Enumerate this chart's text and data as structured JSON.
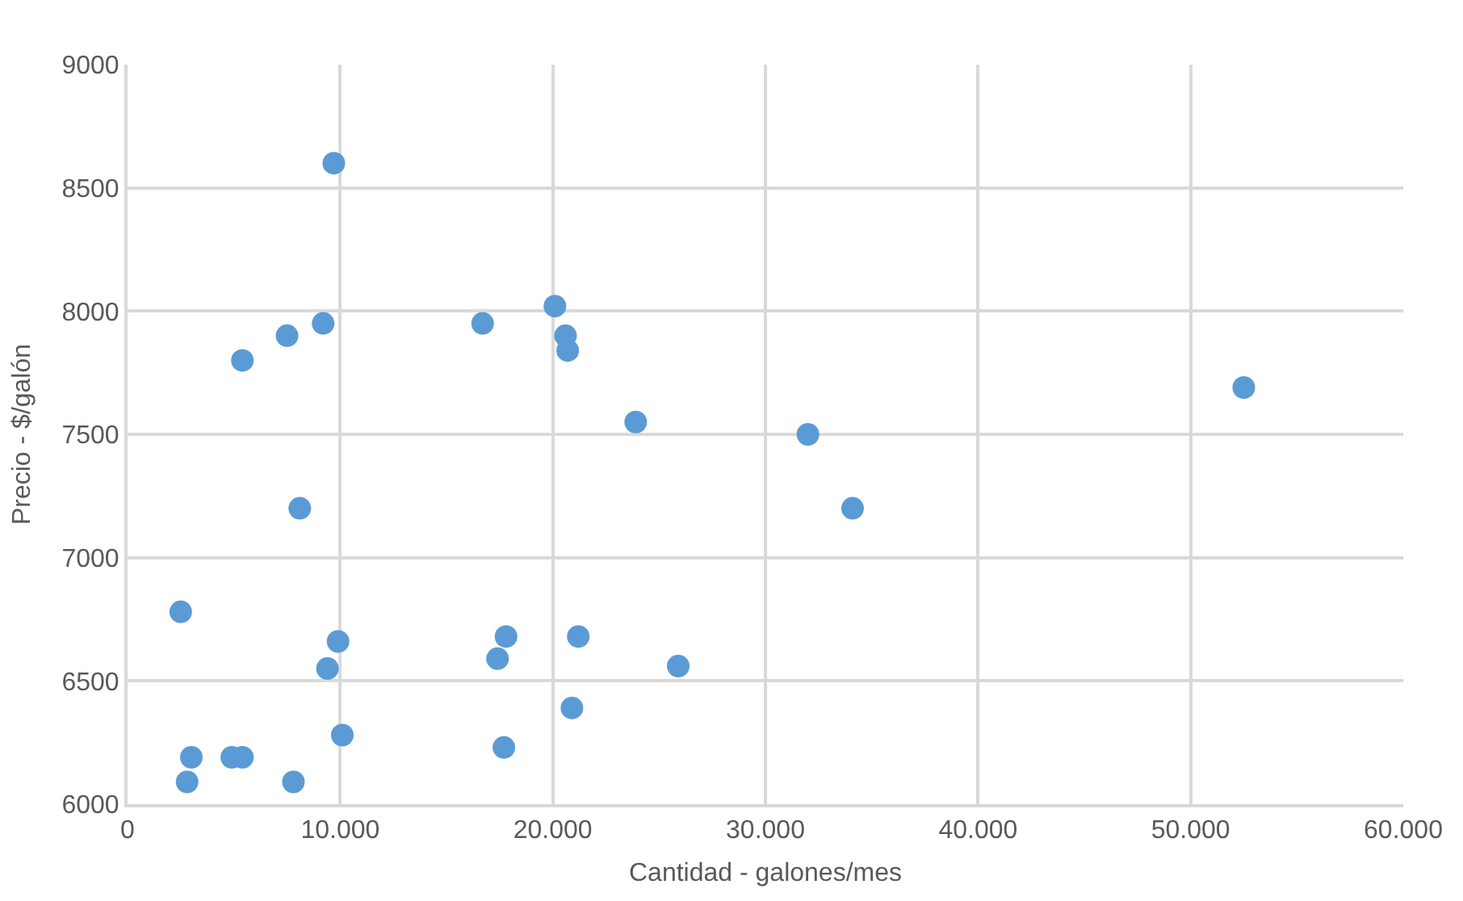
{
  "chart_data": {
    "type": "scatter",
    "xlabel": "Cantidad - galones/mes",
    "ylabel": "Precio - $/galón",
    "x": [
      9700,
      5400,
      7500,
      9200,
      16700,
      20100,
      20600,
      20700,
      8100,
      2500,
      9900,
      9400,
      17800,
      17400,
      21200,
      20900,
      10100,
      17700,
      3000,
      2800,
      4900,
      5400,
      7800,
      23900,
      32000,
      34100,
      25900,
      52500
    ],
    "series": [
      {
        "color": "#5b9bd5",
        "values": [
          8600,
          7800,
          7900,
          7950,
          7950,
          8020,
          7900,
          7840,
          7200,
          6780,
          6660,
          6550,
          6680,
          6590,
          6680,
          6390,
          6280,
          6230,
          6190,
          6090,
          6190,
          6190,
          6090,
          7550,
          7500,
          7200,
          6560,
          7690
        ]
      }
    ],
    "xlim": [
      0,
      60000
    ],
    "xticks": [
      0,
      {
        "value": 10000,
        "label": "10.000"
      },
      {
        "value": 20000,
        "label": "20.000"
      },
      {
        "value": 30000,
        "label": "30.000"
      },
      {
        "value": 40000,
        "label": "40.000"
      },
      {
        "value": 50000,
        "label": "50.000"
      },
      {
        "value": 60000,
        "label": "60.000"
      }
    ],
    "ylim": [
      6000,
      9000
    ],
    "yticks": [
      6000,
      6500,
      7000,
      7500,
      8000,
      8500,
      9000
    ],
    "grid": true,
    "marker": "circle"
  }
}
